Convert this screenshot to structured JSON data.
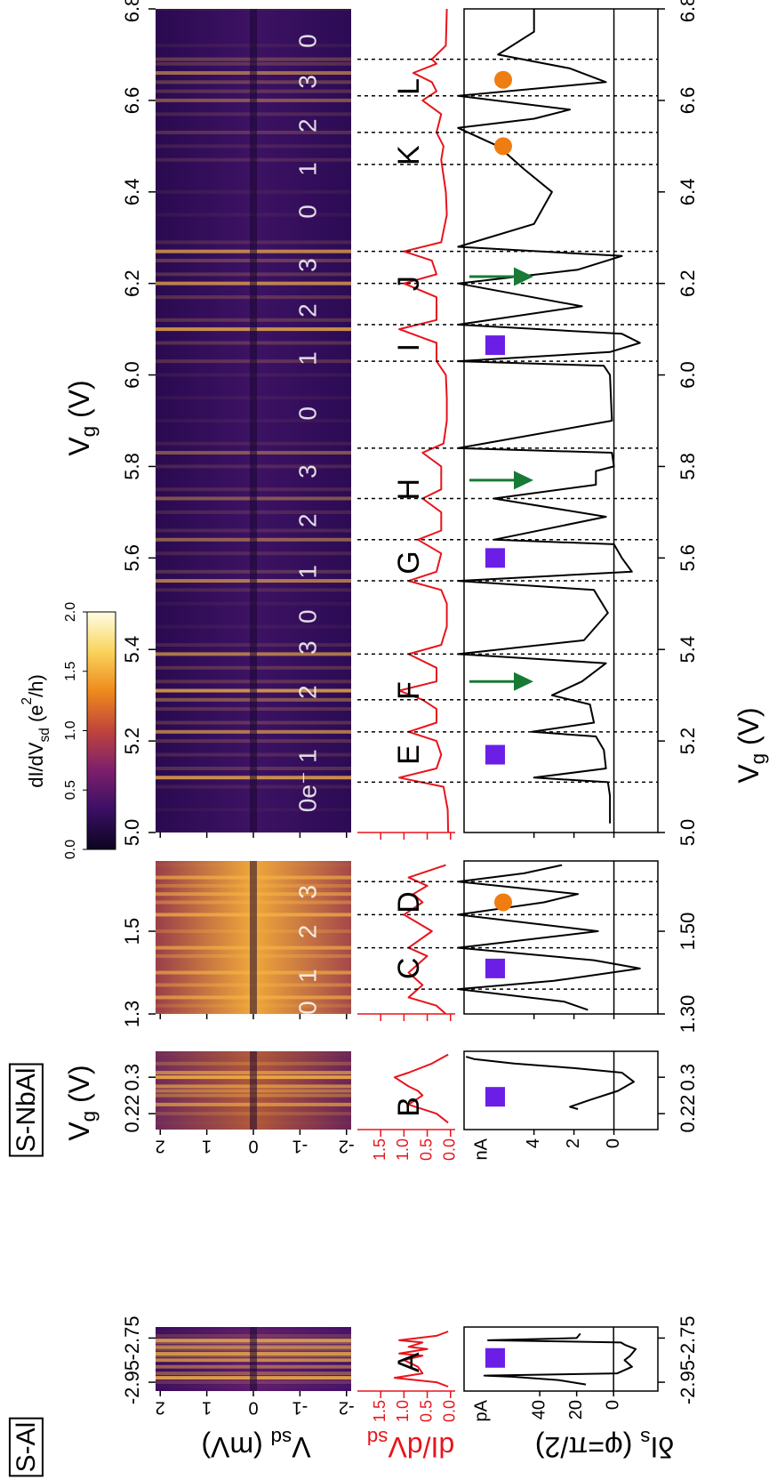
{
  "panel_labels": [
    "S-Al",
    "S-NbAl"
  ],
  "xlabels": [
    [
      {
        "t": "V"
      },
      {
        "t": "g",
        "sub": true
      },
      {
        "t": " (V)"
      }
    ],
    [
      {
        "t": "V"
      },
      {
        "t": "g",
        "sub": true
      },
      {
        "t": " (V)"
      }
    ],
    [
      {
        "t": "V"
      },
      {
        "t": "g",
        "sub": true
      },
      {
        "t": " (V)"
      }
    ]
  ],
  "ytitles": {
    "map": [
      {
        "t": "V"
      },
      {
        "t": "sd",
        "sub": true
      },
      {
        "t": " (mV)"
      }
    ],
    "didv": [
      {
        "t": "dI/dV"
      },
      {
        "t": "sd",
        "sub": true
      }
    ],
    "dis": [
      {
        "t": "δI"
      },
      {
        "t": "s",
        "sub": true
      },
      {
        "t": " (φ=π/2)"
      }
    ]
  },
  "colorbar": {
    "label": [
      {
        "t": "dI/dV"
      },
      {
        "t": "sd",
        "sub": true
      },
      {
        "t": " (e"
      },
      {
        "t": "2",
        "sup": true
      },
      {
        "t": "/h)"
      }
    ],
    "lim": [
      0,
      2
    ],
    "ticks": [
      {
        "value": 0,
        "label": "0.0"
      },
      0.5,
      {
        "value": 1,
        "label": "1.0"
      },
      1.5,
      {
        "value": 2,
        "label": "2.0"
      }
    ],
    "colors": [
      "#0c0420",
      "#3a0f64",
      "#7d1f6c",
      "#c0443c",
      "#ee8a1c",
      "#f9d45c",
      "#fffde6"
    ]
  },
  "marker_colors": {
    "square": "#6a1ee6",
    "circle": "#f07d12",
    "arrow": "#177a35"
  },
  "chart_data": [
    {
      "type": "line",
      "xlim": [
        -2.99,
        -2.7
      ],
      "xticks": [
        -2.95,
        -2.75
      ],
      "xticks_bottom": [
        -2.95,
        -2.75
      ],
      "ticklabels": true,
      "map_ylim": [
        -2.1,
        2.1
      ],
      "map_yticks": [
        2,
        1,
        0,
        -1,
        -2
      ],
      "didv": {
        "color": "#e8141c",
        "ylim": [
          -0.1,
          2.0
        ],
        "yticks": [
          {
            "value": 0,
            "label": "0.0"
          },
          0.5,
          {
            "value": 1,
            "label": "1.0"
          },
          1.5
        ],
        "x": [
          -2.97,
          -2.95,
          -2.93,
          -2.91,
          -2.88,
          -2.85,
          -2.83,
          -2.82,
          -2.8,
          -2.79,
          -2.77,
          -2.76,
          -2.74,
          -2.72
        ],
        "values": [
          0.05,
          0.3,
          1.2,
          0.6,
          0.7,
          1.0,
          0.6,
          1.1,
          0.5,
          0.9,
          0.6,
          1.1,
          0.3,
          0.05
        ]
      },
      "dis": {
        "color": "#000000",
        "unit": "pA",
        "zero_line": true,
        "ylim": [
          -24,
          81
        ],
        "yticks": [
          0,
          20,
          40
        ],
        "x": [
          -2.96,
          -2.94,
          -2.925,
          -2.92,
          -2.91,
          -2.88,
          -2.85,
          -2.83,
          -2.8,
          -2.78,
          -2.77,
          -2.765,
          -2.76,
          -2.75,
          -2.73
        ],
        "values": [
          15,
          30,
          55,
          70,
          -2,
          -10,
          -6,
          -9,
          -12,
          -6,
          -4,
          30,
          68,
          20,
          18
        ]
      },
      "letters": [
        {
          "text": "A",
          "x": -2.86
        }
      ],
      "charges": [],
      "vlines": [],
      "markers": [
        {
          "shape": "square",
          "x": -2.84
        }
      ]
    },
    {
      "type": "line",
      "xlim": [
        0.185,
        0.357
      ],
      "xticks": [
        0.22,
        0.3
      ],
      "xticks_bottom": [
        0.22,
        0.3
      ],
      "ticklabels": true,
      "map_ylim": [
        -2.1,
        2.1
      ],
      "map_yticks": [
        2,
        1,
        0,
        -1,
        -2
      ],
      "didv": {
        "color": "#e8141c",
        "ylim": [
          -0.1,
          2.0
        ],
        "yticks": [
          {
            "value": 0,
            "label": "0.0"
          },
          0.5,
          {
            "value": 1,
            "label": "1.0"
          },
          1.5
        ],
        "x": [
          0.2,
          0.22,
          0.24,
          0.26,
          0.27,
          0.28,
          0.3,
          0.31,
          0.33,
          0.35
        ],
        "values": [
          0.05,
          0.3,
          0.9,
          0.6,
          0.7,
          0.9,
          1.2,
          0.9,
          0.4,
          0.05
        ]
      },
      "dis": {
        "color": "#000000",
        "unit": "nA",
        "zero_line": true,
        "ylim": [
          -2.2,
          7.5
        ],
        "yticks": [
          0,
          2,
          4
        ],
        "x": [
          0.23,
          0.235,
          0.25,
          0.27,
          0.29,
          0.31,
          0.32,
          0.33,
          0.34,
          0.345
        ],
        "values": [
          1.8,
          2.2,
          1.2,
          -0.2,
          -1.0,
          -0.4,
          2.0,
          5.0,
          7.0,
          7.4
        ]
      },
      "letters": [
        {
          "text": "B",
          "x": 0.235
        }
      ],
      "charges": [],
      "vlines": [],
      "markers": [
        {
          "shape": "square",
          "x": 0.257
        }
      ]
    },
    {
      "type": "line",
      "xlim": [
        1.3,
        1.67
      ],
      "xticks": [
        1.3,
        1.5
      ],
      "xticks_bottom": [
        {
          "value": 1.3,
          "label": "1.30"
        },
        {
          "value": 1.5,
          "label": "1.50"
        }
      ],
      "ticklabels": false,
      "map_ylim": [
        -2.1,
        2.1
      ],
      "map_yticks": [
        2,
        1,
        0,
        -1,
        -2
      ],
      "didv": {
        "color": "#e8141c",
        "ylim": [
          -0.1,
          2.0
        ],
        "yticks": [
          {
            "value": 0,
            "label": "0.0"
          },
          0.5,
          {
            "value": 1,
            "label": "1.0"
          },
          1.5
        ],
        "x": [
          1.3,
          1.32,
          1.34,
          1.37,
          1.4,
          1.44,
          1.46,
          1.5,
          1.54,
          1.57,
          1.59,
          1.61,
          1.63,
          1.66
        ],
        "values": [
          0.1,
          0.3,
          0.9,
          0.6,
          0.9,
          0.5,
          0.9,
          0.4,
          1.0,
          0.6,
          0.8,
          0.5,
          0.9,
          0.1
        ]
      },
      "dis": {
        "color": "#000000",
        "zero_line": true,
        "ylim": [
          -2.2,
          7.5
        ],
        "yticks": [
          0,
          2,
          4
        ],
        "x": [
          1.31,
          1.33,
          1.36,
          1.38,
          1.41,
          1.43,
          1.46,
          1.5,
          1.54,
          1.57,
          1.59,
          1.62,
          1.64,
          1.66
        ],
        "values": [
          1.3,
          2.5,
          7.8,
          3.0,
          -1.3,
          1.0,
          7.8,
          0.8,
          7.8,
          3.5,
          1.8,
          7.8,
          4.5,
          2.6
        ]
      },
      "letters": [
        {
          "text": "C",
          "x": 1.41
        },
        {
          "text": "D",
          "x": 1.57
        }
      ],
      "charges": [
        {
          "text": "0",
          "x": 1.315
        },
        {
          "text": "1",
          "x": 1.392
        },
        {
          "text": "2",
          "x": 1.499
        },
        {
          "text": "3",
          "x": 1.595
        }
      ],
      "vlines": [
        1.36,
        1.46,
        1.54,
        1.62
      ],
      "markers": [
        {
          "shape": "square",
          "x": 1.41
        },
        {
          "shape": "circle",
          "x": 1.57
        }
      ]
    },
    {
      "type": "line",
      "xlim": [
        5.0,
        6.8
      ],
      "xticks": [
        {
          "value": 5,
          "label": "5.0"
        },
        5.2,
        5.4,
        5.6,
        5.8,
        {
          "value": 6,
          "label": "6.0"
        },
        6.2,
        6.4,
        6.6,
        6.8
      ],
      "xticks_bottom": [
        {
          "value": 5,
          "label": "5.0"
        },
        5.2,
        5.4,
        5.6,
        5.8,
        {
          "value": 6,
          "label": "6.0"
        },
        6.2,
        6.4,
        6.6,
        6.8
      ],
      "ticklabels": false,
      "map_ylim": [
        -2.1,
        2.1
      ],
      "map_yticks": [
        2,
        1,
        0,
        -1,
        -2
      ],
      "didv": {
        "color": "#e8141c",
        "ylim": [
          -0.1,
          2.0
        ],
        "yticks": [
          {
            "value": 0,
            "label": "0.0"
          },
          0.5,
          {
            "value": 1,
            "label": "1.0"
          },
          1.5
        ],
        "x": [
          5.0,
          5.05,
          5.1,
          5.12,
          5.14,
          5.17,
          5.2,
          5.22,
          5.24,
          5.27,
          5.29,
          5.31,
          5.33,
          5.36,
          5.39,
          5.41,
          5.45,
          5.5,
          5.53,
          5.55,
          5.57,
          5.61,
          5.64,
          5.66,
          5.7,
          5.73,
          5.75,
          5.8,
          5.83,
          5.85,
          5.9,
          5.95,
          6.0,
          6.03,
          6.07,
          6.1,
          6.12,
          6.17,
          6.2,
          6.22,
          6.25,
          6.27,
          6.29,
          6.35,
          6.4,
          6.47,
          6.5,
          6.53,
          6.57,
          6.6,
          6.62,
          6.64,
          6.66,
          6.68,
          6.69,
          6.72,
          6.8
        ],
        "values": [
          0.05,
          0.06,
          0.15,
          1.1,
          0.3,
          0.2,
          0.3,
          0.9,
          0.3,
          0.3,
          0.6,
          1.1,
          0.3,
          0.3,
          0.9,
          0.2,
          0.08,
          0.08,
          0.2,
          0.9,
          0.3,
          0.2,
          0.7,
          0.2,
          0.2,
          0.6,
          0.2,
          0.2,
          0.6,
          0.15,
          0.08,
          0.08,
          0.1,
          0.3,
          0.3,
          1.1,
          0.3,
          0.3,
          1.0,
          0.3,
          0.4,
          1.0,
          0.2,
          0.08,
          0.1,
          0.2,
          0.15,
          0.3,
          0.2,
          0.6,
          0.3,
          0.4,
          0.8,
          0.3,
          0.4,
          0.1,
          0.08
        ]
      },
      "dis": {
        "color": "#000000",
        "zero_line": true,
        "ylim": [
          -2.2,
          7.5
        ],
        "yticks": [
          0,
          2,
          4
        ],
        "x": [
          5.02,
          5.08,
          5.11,
          5.12,
          5.14,
          5.18,
          5.21,
          5.22,
          5.24,
          5.28,
          5.3,
          5.33,
          5.37,
          5.39,
          5.42,
          5.48,
          5.53,
          5.55,
          5.57,
          5.6,
          5.63,
          5.64,
          5.69,
          5.73,
          5.76,
          5.79,
          5.8,
          5.83,
          5.84,
          5.9,
          6.0,
          6.02,
          6.03,
          6.05,
          6.07,
          6.09,
          6.11,
          6.15,
          6.2,
          6.23,
          6.26,
          6.28,
          6.33,
          6.4,
          6.45,
          6.5,
          6.54,
          6.56,
          6.58,
          6.61,
          6.64,
          6.67,
          6.7,
          6.75,
          6.8
        ],
        "values": [
          0.2,
          0.2,
          0.3,
          4.0,
          0.4,
          0.5,
          0.9,
          4.1,
          1.0,
          1.2,
          3.1,
          1.6,
          0.4,
          7.8,
          1.5,
          0.3,
          1.0,
          7.8,
          -0.9,
          -0.4,
          0.0,
          6.0,
          0.4,
          6.0,
          0.9,
          0.9,
          0.0,
          0.1,
          7.8,
          0.1,
          0.2,
          0.5,
          7.8,
          0.2,
          -1.3,
          -0.4,
          7.8,
          1.6,
          7.8,
          1.8,
          -0.4,
          7.8,
          4.0,
          3.1,
          4.5,
          5.8,
          7.8,
          4.0,
          2.2,
          7.8,
          0.4,
          2.2,
          5.8,
          4.0,
          4.0
        ]
      },
      "letters": [
        {
          "text": "E",
          "x": 5.17
        },
        {
          "text": "F",
          "x": 5.31
        },
        {
          "text": "G",
          "x": 5.59
        },
        {
          "text": "H",
          "x": 5.75
        },
        {
          "text": "I",
          "x": 6.06
        },
        {
          "text": "J",
          "x": 6.2
        },
        {
          "text": "K",
          "x": 6.48
        },
        {
          "text": "L",
          "x": 6.63
        }
      ],
      "charges": [
        {
          "text": "0e⁻",
          "x": 5.089
        },
        {
          "text": "1",
          "x": 5.167
        },
        {
          "text": "2",
          "x": 5.307
        },
        {
          "text": "3",
          "x": 5.404
        },
        {
          "text": "0",
          "x": 5.472
        },
        {
          "text": "1",
          "x": 5.57
        },
        {
          "text": "2",
          "x": 5.682
        },
        {
          "text": "3",
          "x": 5.789
        },
        {
          "text": "0",
          "x": 5.916
        },
        {
          "text": "1",
          "x": 6.036
        },
        {
          "text": "2",
          "x": 6.141
        },
        {
          "text": "3",
          "x": 6.24
        },
        {
          "text": "0",
          "x": 6.357
        },
        {
          "text": "1",
          "x": 6.45
        },
        {
          "text": "2",
          "x": 6.545
        },
        {
          "text": "3",
          "x": 6.641
        },
        {
          "text": "0",
          "x": 6.73
        }
      ],
      "vlines": [
        5.11,
        5.22,
        5.29,
        5.39,
        5.55,
        5.64,
        5.73,
        5.84,
        6.03,
        6.11,
        6.2,
        6.27,
        6.46,
        6.53,
        6.61,
        6.69
      ],
      "markers": [
        {
          "shape": "square",
          "x": 5.17
        },
        {
          "shape": "arrow",
          "x": 5.33
        },
        {
          "shape": "square",
          "x": 5.6
        },
        {
          "shape": "arrow",
          "x": 5.77
        },
        {
          "shape": "square",
          "x": 6.065
        },
        {
          "shape": "arrow",
          "x": 6.215
        },
        {
          "shape": "circle",
          "x": 6.5
        },
        {
          "shape": "circle",
          "x": 6.645
        }
      ]
    }
  ]
}
